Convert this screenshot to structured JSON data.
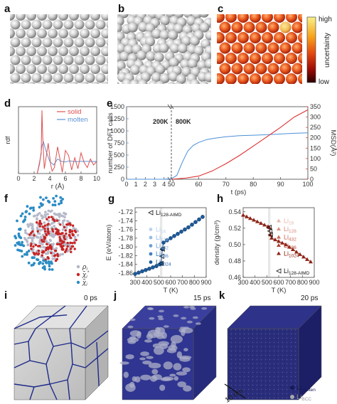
{
  "figure": {
    "panel_letters": [
      "a",
      "b",
      "c",
      "d",
      "e",
      "f",
      "g",
      "h",
      "i",
      "j",
      "k"
    ],
    "colorbar": {
      "high_label": "high",
      "low_label": "low",
      "title": "uncertainty",
      "colors": [
        "#f8f08a",
        "#f7a21b",
        "#e34a10",
        "#9c0b06",
        "#2a0000"
      ]
    },
    "time_labels": {
      "i": "0 ps",
      "j": "15 ps",
      "k": "20 ps"
    },
    "scale_bar": "10 nm",
    "k_legend": [
      {
        "base": "Li",
        "sub": "molten",
        "color": "#151a55"
      },
      {
        "base": "Li",
        "sub": "BCC",
        "color": "#a9a9a9"
      }
    ],
    "f_legend": [
      {
        "label": "ρ",
        "sub": "i",
        "color": "#b0b4c4"
      },
      {
        "label": "χ̃",
        "sub": "i",
        "sup": "*",
        "color": "#c82323"
      },
      {
        "label": "χ̃",
        "sub": "i",
        "color": "#2b8cc4"
      }
    ]
  },
  "chart_data": [
    {
      "panel": "d",
      "type": "line",
      "xlabel": "r (Å)",
      "ylabel": "rdf",
      "xlim": [
        0,
        10
      ],
      "xticks": [
        0,
        2,
        4,
        6,
        8,
        10
      ],
      "series": [
        {
          "name": "solid",
          "color": "#e05050",
          "x": [
            2.4,
            2.9,
            3.0,
            3.1,
            3.3,
            3.5,
            3.8,
            4.1,
            4.3,
            4.6,
            5.0,
            5.3,
            5.6,
            6.0,
            6.4,
            6.8,
            7.2,
            7.6,
            8.0,
            8.4,
            8.8,
            9.2,
            9.6,
            10.0
          ],
          "y": [
            0,
            1.6,
            5.2,
            3.0,
            0.4,
            1.2,
            2.5,
            0.8,
            0.2,
            0.5,
            2.2,
            1.2,
            0.1,
            1.9,
            1.5,
            0.3,
            1.3,
            0.4,
            1.7,
            0.9,
            0.5,
            1.2,
            0.7,
            1.0
          ]
        },
        {
          "name": "molten",
          "color": "#5b93d6",
          "x": [
            2.4,
            2.7,
            3.0,
            3.2,
            3.5,
            4.0,
            4.5,
            5.0,
            5.5,
            6.0,
            6.5,
            7.0,
            7.5,
            8.0,
            8.5,
            9.0,
            9.5,
            10.0
          ],
          "y": [
            0,
            0.8,
            2.3,
            2.6,
            1.9,
            1.0,
            0.7,
            1.2,
            1.0,
            0.95,
            1.05,
            1.0,
            0.98,
            1.01,
            1.0,
            1.0,
            0.99,
            1.0
          ]
        }
      ]
    },
    {
      "panel": "e",
      "type": "line",
      "xlabel": "t (ps)",
      "ylabel": "number of DFT calls",
      "ylabel_right": "MSD(Å²)",
      "xticks": [
        0,
        1,
        2,
        3,
        4,
        50,
        60,
        70,
        80,
        90,
        100
      ],
      "ylim": [
        0,
        1500
      ],
      "yticks": [
        0,
        250,
        500,
        750,
        1000,
        1250,
        1500
      ],
      "ylim_right": [
        0,
        350
      ],
      "yticks_right": [
        0,
        50,
        100,
        150,
        200,
        250,
        300,
        350
      ],
      "annotations": [
        "200K",
        "800K"
      ],
      "series": [
        {
          "name": "DFT calls",
          "color": "#4a90d9",
          "x": [
            0,
            1,
            2,
            3,
            4,
            50,
            52,
            54,
            56,
            58,
            60,
            63,
            66,
            70,
            75,
            80,
            85,
            90,
            95,
            100
          ],
          "y": [
            0,
            0,
            0,
            0,
            0,
            10,
            80,
            350,
            580,
            700,
            760,
            820,
            850,
            880,
            900,
            910,
            920,
            935,
            950,
            960
          ]
        },
        {
          "name": "MSD",
          "color": "#e03030",
          "x": [
            50,
            55,
            60,
            65,
            70,
            75,
            80,
            85,
            90,
            95,
            100
          ],
          "y": [
            0,
            5,
            15,
            40,
            75,
            115,
            160,
            205,
            250,
            300,
            335
          ]
        }
      ]
    },
    {
      "panel": "g",
      "type": "line",
      "xlabel": "T (K)",
      "ylabel": "E (eV/atom)",
      "xlim": [
        300,
        900
      ],
      "xticks": [
        300,
        400,
        500,
        600,
        700,
        800,
        900
      ],
      "ylim": [
        -1.87,
        -1.71
      ],
      "yticks": [
        -1.72,
        -1.74,
        -1.76,
        -1.78,
        -1.8,
        -1.82,
        -1.84,
        -1.86
      ],
      "legend": [
        {
          "base": "Li",
          "sub": "128-AIMD"
        },
        {
          "base": "Li",
          "sub": "16"
        },
        {
          "base": "Li",
          "sub": "128"
        },
        {
          "base": "Li",
          "sub": "432"
        },
        {
          "base": "Li",
          "sub": "686"
        },
        {
          "base": "Li",
          "sub": "1024"
        }
      ],
      "x": [
        300,
        330,
        360,
        390,
        420,
        450,
        480,
        510,
        520,
        530,
        540,
        570,
        600,
        630,
        660,
        690,
        720,
        750,
        780,
        810,
        840,
        870
      ],
      "y": [
        -1.862,
        -1.859,
        -1.856,
        -1.853,
        -1.85,
        -1.847,
        -1.844,
        -1.84,
        -1.838,
        -1.805,
        -1.79,
        -1.785,
        -1.78,
        -1.775,
        -1.77,
        -1.765,
        -1.76,
        -1.755,
        -1.749,
        -1.743,
        -1.737,
        -1.731
      ]
    },
    {
      "panel": "h",
      "type": "line",
      "xlabel": "T (K)",
      "ylabel": "density (g/cm³)",
      "xlim": [
        300,
        900
      ],
      "xticks": [
        300,
        400,
        500,
        600,
        700,
        800,
        900
      ],
      "ylim": [
        0.46,
        0.545
      ],
      "yticks": [
        0.46,
        0.48,
        0.5,
        0.52,
        0.54
      ],
      "legend": [
        {
          "base": "Li",
          "sub": "128-AIMD"
        },
        {
          "base": "Li",
          "sub": "16"
        },
        {
          "base": "Li",
          "sub": "128"
        },
        {
          "base": "Li",
          "sub": "432"
        },
        {
          "base": "Li",
          "sub": "686"
        },
        {
          "base": "Li",
          "sub": "1024"
        }
      ],
      "x": [
        300,
        330,
        360,
        390,
        420,
        450,
        480,
        510,
        520,
        530,
        540,
        570,
        600,
        630,
        660,
        690,
        720,
        750,
        780,
        810,
        840,
        870
      ],
      "y": [
        0.536,
        0.534,
        0.532,
        0.53,
        0.528,
        0.526,
        0.524,
        0.522,
        0.521,
        0.512,
        0.508,
        0.506,
        0.504,
        0.502,
        0.5,
        0.497,
        0.494,
        0.491,
        0.488,
        0.485,
        0.482,
        0.479
      ]
    }
  ]
}
